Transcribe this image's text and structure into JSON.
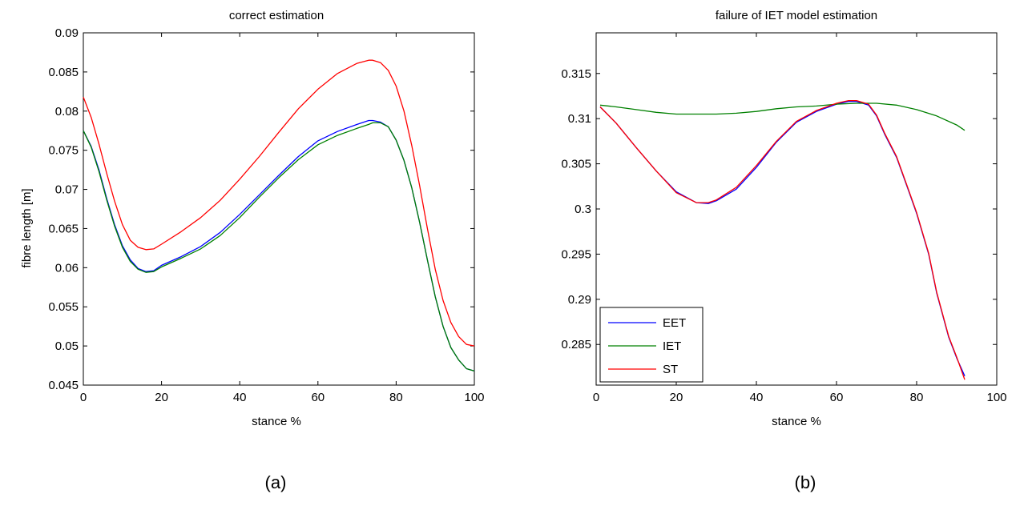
{
  "figure": {
    "panel_labels": [
      "(a)",
      "(b)"
    ]
  },
  "chart_data": [
    {
      "type": "line",
      "title": "correct estimation",
      "xlabel": "stance %",
      "ylabel": "fibre length [m]",
      "xlim": [
        0,
        100
      ],
      "ylim": [
        0.045,
        0.09
      ],
      "xticks": [
        0,
        20,
        40,
        60,
        80,
        100
      ],
      "xtick_labels": [
        "0",
        "20",
        "40",
        "60",
        "80",
        "100"
      ],
      "yticks": [
        0.045,
        0.05,
        0.055,
        0.06,
        0.065,
        0.07,
        0.075,
        0.08,
        0.085,
        0.09
      ],
      "ytick_labels": [
        "0.045",
        "0.05",
        "0.055",
        "0.06",
        "0.065",
        "0.07",
        "0.075",
        "0.08",
        "0.085",
        "0.09"
      ],
      "grid": false,
      "legend": null,
      "series": [
        {
          "color": "#0000ff",
          "x": [
            0,
            2,
            4,
            6,
            8,
            10,
            12,
            14,
            16,
            18,
            20,
            25,
            30,
            35,
            40,
            45,
            50,
            55,
            60,
            65,
            70,
            73,
            74,
            76,
            78,
            80,
            82,
            84,
            86,
            88,
            90,
            92,
            94,
            96,
            98,
            100
          ],
          "y": [
            0.0775,
            0.0755,
            0.0725,
            0.0688,
            0.0655,
            0.0628,
            0.061,
            0.0599,
            0.0595,
            0.0596,
            0.0603,
            0.0614,
            0.0627,
            0.0645,
            0.0668,
            0.0693,
            0.0718,
            0.0742,
            0.0762,
            0.0774,
            0.0783,
            0.0788,
            0.0788,
            0.0786,
            0.078,
            0.0763,
            0.0737,
            0.0702,
            0.0658,
            0.061,
            0.0563,
            0.0525,
            0.0498,
            0.0482,
            0.0471,
            0.0468
          ]
        },
        {
          "color": "#008000",
          "x": [
            0,
            2,
            4,
            6,
            8,
            10,
            12,
            14,
            16,
            18,
            20,
            25,
            30,
            35,
            40,
            45,
            50,
            55,
            60,
            65,
            70,
            73,
            74,
            76,
            78,
            80,
            82,
            84,
            86,
            88,
            90,
            92,
            94,
            96,
            98,
            100
          ],
          "y": [
            0.0775,
            0.0754,
            0.0723,
            0.0686,
            0.0653,
            0.0626,
            0.0608,
            0.0598,
            0.0594,
            0.0595,
            0.0601,
            0.0612,
            0.0624,
            0.0641,
            0.0664,
            0.069,
            0.0715,
            0.0738,
            0.0757,
            0.0769,
            0.0778,
            0.0783,
            0.0785,
            0.0785,
            0.078,
            0.0763,
            0.0737,
            0.0702,
            0.0658,
            0.061,
            0.0563,
            0.0525,
            0.0498,
            0.0482,
            0.0471,
            0.0468
          ]
        },
        {
          "color": "#ff0000",
          "x": [
            0,
            2,
            4,
            6,
            8,
            10,
            12,
            14,
            16,
            18,
            20,
            25,
            30,
            35,
            40,
            45,
            50,
            55,
            60,
            65,
            70,
            73,
            74,
            76,
            78,
            80,
            82,
            84,
            86,
            88,
            90,
            92,
            94,
            96,
            98,
            100
          ],
          "y": [
            0.0818,
            0.0792,
            0.0758,
            0.072,
            0.0685,
            0.0655,
            0.0635,
            0.0626,
            0.0623,
            0.0624,
            0.063,
            0.0646,
            0.0664,
            0.0686,
            0.0713,
            0.0742,
            0.0773,
            0.0803,
            0.0828,
            0.0848,
            0.0861,
            0.0865,
            0.0865,
            0.0862,
            0.0852,
            0.0832,
            0.08,
            0.0756,
            0.0705,
            0.065,
            0.0598,
            0.0558,
            0.053,
            0.0512,
            0.0502,
            0.05
          ]
        }
      ]
    },
    {
      "type": "line",
      "title": "failure of IET model estimation",
      "xlabel": "stance %",
      "ylabel": "",
      "xlim": [
        0,
        100
      ],
      "ylim": [
        0.2805,
        0.3195
      ],
      "xticks": [
        0,
        20,
        40,
        60,
        80,
        100
      ],
      "xtick_labels": [
        "0",
        "20",
        "40",
        "60",
        "80",
        "100"
      ],
      "yticks": [
        0.285,
        0.29,
        0.295,
        0.3,
        0.305,
        0.31,
        0.315
      ],
      "ytick_labels": [
        "0.285",
        "0.29",
        "0.295",
        "0.3",
        "0.305",
        "0.31",
        "0.315"
      ],
      "grid": false,
      "legend": "bottom-left",
      "series": [
        {
          "name": "EET",
          "color": "#0000ff",
          "x": [
            1,
            5,
            10,
            15,
            20,
            25,
            28,
            30,
            35,
            40,
            45,
            50,
            55,
            60,
            63,
            65,
            68,
            70,
            72,
            75,
            78,
            80,
            83,
            85,
            88,
            90,
            92
          ],
          "y": [
            0.3113,
            0.3095,
            0.3068,
            0.3042,
            0.3019,
            0.3007,
            0.3006,
            0.3009,
            0.3022,
            0.3046,
            0.3074,
            0.3096,
            0.3108,
            0.3116,
            0.3119,
            0.3119,
            0.3115,
            0.3103,
            0.3083,
            0.3057,
            0.302,
            0.2995,
            0.295,
            0.2907,
            0.2858,
            0.2835,
            0.2815
          ]
        },
        {
          "name": "IET",
          "color": "#008000",
          "x": [
            1,
            5,
            10,
            15,
            20,
            25,
            30,
            35,
            40,
            45,
            50,
            55,
            60,
            65,
            70,
            75,
            80,
            85,
            90,
            92
          ],
          "y": [
            0.3115,
            0.3113,
            0.311,
            0.3107,
            0.3105,
            0.3105,
            0.3105,
            0.3106,
            0.3108,
            0.3111,
            0.3113,
            0.3114,
            0.3116,
            0.3117,
            0.3117,
            0.3115,
            0.311,
            0.3103,
            0.3093,
            0.3087
          ]
        },
        {
          "name": "ST",
          "color": "#ff0000",
          "x": [
            1,
            5,
            10,
            15,
            20,
            25,
            28,
            30,
            35,
            40,
            45,
            50,
            55,
            60,
            63,
            65,
            68,
            70,
            72,
            75,
            78,
            80,
            83,
            85,
            88,
            90,
            92
          ],
          "y": [
            0.3113,
            0.3095,
            0.3068,
            0.3042,
            0.3018,
            0.3007,
            0.3007,
            0.301,
            0.3024,
            0.3048,
            0.3075,
            0.3097,
            0.3109,
            0.3117,
            0.312,
            0.312,
            0.3116,
            0.3104,
            0.3084,
            0.3058,
            0.3021,
            0.2996,
            0.2951,
            0.2908,
            0.2859,
            0.2836,
            0.2811
          ]
        }
      ]
    }
  ]
}
